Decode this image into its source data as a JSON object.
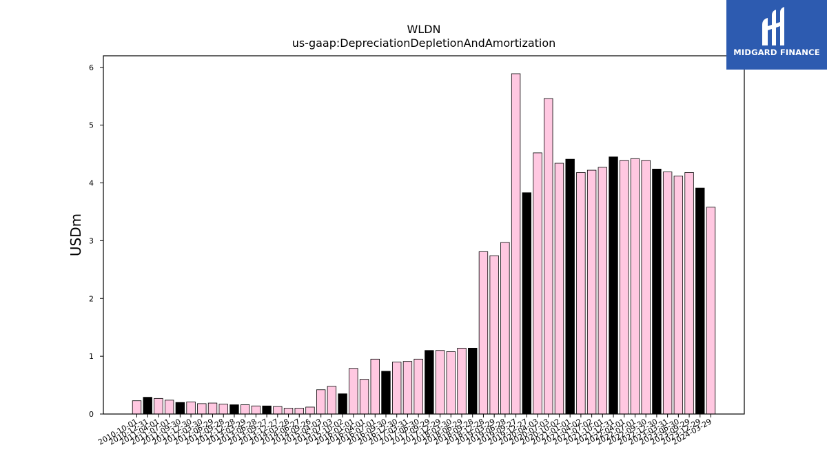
{
  "chart_data": {
    "type": "bar",
    "title": "WLDN",
    "subtitle": "us-gaap:DepreciationDepletionAndAmortization",
    "xlabel": "",
    "ylabel": "USDm",
    "ylim": [
      0,
      6.2
    ],
    "yticks": [
      0,
      1,
      2,
      3,
      4,
      5,
      6
    ],
    "grid": false,
    "colors": {
      "quarter": "#ffc8e1",
      "annual": "#000000",
      "edge": "#000000"
    },
    "categories": [
      "2010-10-01",
      "2010-12-31",
      "2011-04-01",
      "2011-07-01",
      "2011-09-30",
      "2011-12-30",
      "2012-03-30",
      "2012-06-29",
      "2012-09-28",
      "2012-12-28",
      "2013-03-29",
      "2013-06-28",
      "2013-09-27",
      "2013-12-27",
      "2014-03-28",
      "2014-06-27",
      "2014-09-26",
      "2015-04-03",
      "2015-07-03",
      "2015-10-02",
      "2016-01-01",
      "2016-04-01",
      "2016-07-01",
      "2016-09-30",
      "2016-12-30",
      "2017-03-31",
      "2017-06-30",
      "2017-09-29",
      "2017-12-29",
      "2018-03-30",
      "2018-06-29",
      "2018-09-28",
      "2018-12-28",
      "2019-03-29",
      "2019-06-28",
      "2019-09-27",
      "2019-12-27",
      "2020-04-03",
      "2020-07-03",
      "2020-10-02",
      "2021-01-01",
      "2021-04-02",
      "2021-07-02",
      "2021-10-01",
      "2021-12-31",
      "2022-04-01",
      "2022-07-01",
      "2022-09-30",
      "2022-12-30",
      "2023-03-31",
      "2023-06-30",
      "2023-09-29",
      "2023-12-29",
      "2024-03-29"
    ],
    "values": [
      0.23,
      0.29,
      0.27,
      0.24,
      0.2,
      0.21,
      0.18,
      0.19,
      0.17,
      0.16,
      0.16,
      0.14,
      0.14,
      0.13,
      0.1,
      0.1,
      0.12,
      0.42,
      0.48,
      0.35,
      0.79,
      0.6,
      0.95,
      0.74,
      0.9,
      0.91,
      0.95,
      1.1,
      1.1,
      1.08,
      1.14,
      1.14,
      2.81,
      2.74,
      2.97,
      5.89,
      3.83,
      4.52,
      5.46,
      4.34,
      4.41,
      4.18,
      4.22,
      4.27,
      4.45,
      4.39,
      4.42,
      4.39,
      4.24,
      4.19,
      4.12,
      4.18,
      3.91,
      3.58
    ],
    "annual_flags": [
      false,
      true,
      false,
      false,
      true,
      false,
      false,
      false,
      false,
      true,
      false,
      false,
      true,
      false,
      false,
      false,
      false,
      false,
      false,
      true,
      false,
      false,
      false,
      true,
      false,
      false,
      false,
      true,
      false,
      false,
      false,
      true,
      false,
      false,
      false,
      false,
      true,
      false,
      false,
      false,
      true,
      false,
      false,
      false,
      true,
      false,
      false,
      false,
      true,
      false,
      false,
      false,
      true,
      false
    ]
  },
  "logo": {
    "text": "MIDGARD FINANCE"
  }
}
